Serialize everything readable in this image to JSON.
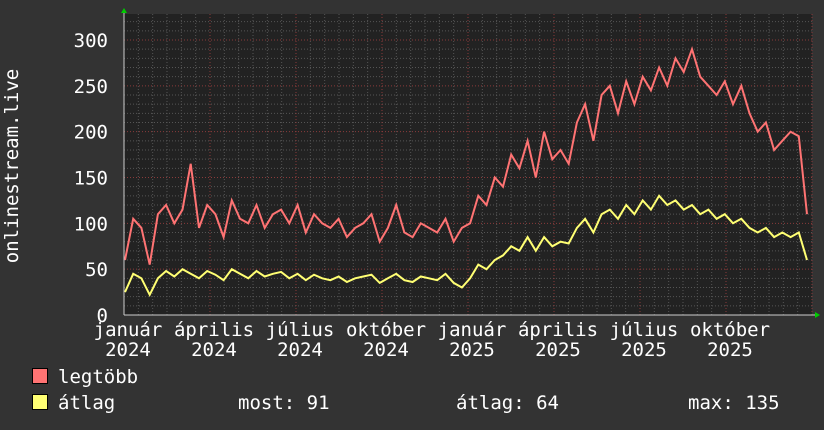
{
  "chart_data": {
    "type": "line",
    "ylabel": "onlinestream.live",
    "ylim": [
      0,
      300
    ],
    "yticks": [
      0,
      50,
      100,
      150,
      200,
      250,
      300
    ],
    "xticks": [
      "január 2024",
      "április 2024",
      "július 2024",
      "október 2024",
      "január 2025",
      "április 2025",
      "július 2025",
      "október 2025"
    ],
    "grid": true,
    "series": [
      {
        "name": "legtöbb",
        "color": "#ff7373",
        "values": [
          60,
          105,
          95,
          55,
          110,
          120,
          100,
          115,
          165,
          95,
          120,
          110,
          85,
          125,
          105,
          100,
          120,
          95,
          110,
          115,
          100,
          120,
          90,
          110,
          100,
          95,
          105,
          85,
          95,
          100,
          110,
          80,
          95,
          120,
          90,
          85,
          100,
          95,
          90,
          105,
          80,
          95,
          100,
          130,
          120,
          150,
          140,
          175,
          160,
          190,
          150,
          200,
          170,
          180,
          165,
          210,
          230,
          190,
          240,
          250,
          220,
          255,
          230,
          260,
          245,
          270,
          250,
          280,
          265,
          290,
          260,
          250,
          240,
          255,
          230,
          250,
          220,
          200,
          210,
          180,
          190,
          200,
          195,
          110
        ]
      },
      {
        "name": "átlag",
        "color": "#ffff73",
        "values": [
          25,
          45,
          40,
          22,
          40,
          48,
          42,
          50,
          45,
          40,
          48,
          44,
          38,
          50,
          45,
          40,
          48,
          42,
          45,
          47,
          40,
          45,
          38,
          44,
          40,
          38,
          42,
          36,
          40,
          42,
          44,
          35,
          40,
          45,
          38,
          36,
          42,
          40,
          38,
          45,
          35,
          30,
          40,
          55,
          50,
          60,
          65,
          75,
          70,
          85,
          70,
          85,
          75,
          80,
          78,
          95,
          105,
          90,
          110,
          115,
          105,
          120,
          110,
          125,
          115,
          130,
          120,
          125,
          115,
          120,
          110,
          115,
          105,
          110,
          100,
          105,
          95,
          90,
          95,
          85,
          90,
          85,
          90,
          60
        ]
      }
    ]
  },
  "legend": {
    "max_name": "legtöbb",
    "avg_name": "átlag",
    "most": "most: 91",
    "atlag": "átlag: 64",
    "max": "max: 135"
  }
}
